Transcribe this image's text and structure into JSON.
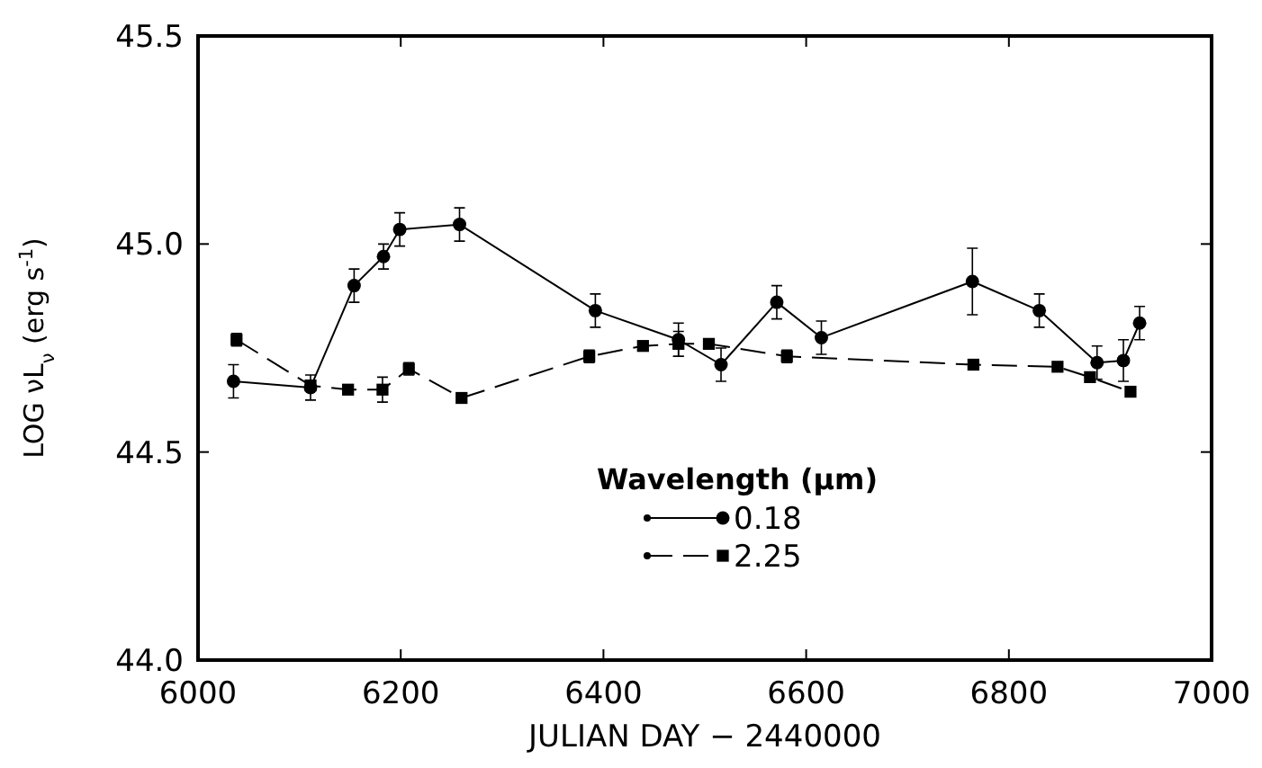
{
  "chart_data": {
    "type": "line",
    "xlabel": "JULIAN DAY − 2440000",
    "ylabel": "LOG νL$_{ν}$ (erg s$^{-1}$)",
    "xlim": [
      6000,
      7000
    ],
    "xticks": [
      6000,
      6200,
      6400,
      6600,
      6800,
      7000
    ],
    "ylim": [
      44.0,
      45.5
    ],
    "yticks": [
      {
        "value": 44,
        "label": "44.0"
      },
      44.5,
      {
        "value": 45,
        "label": "45.0"
      },
      45.5
    ],
    "legend": "bottom",
    "legend_title": "Wavelength (μm)",
    "series": [
      {
        "name": "0.18",
        "color": "#000000",
        "marker": "circle",
        "line_style": "solid",
        "x": [
          6035,
          6111,
          6154,
          6183,
          6199,
          6258,
          6392,
          6474,
          6516,
          6571,
          6615,
          6764,
          6830,
          6887,
          6913,
          6929
        ],
        "values": [
          44.67,
          44.655,
          44.9,
          44.97,
          45.035,
          45.047,
          44.84,
          44.77,
          44.71,
          44.86,
          44.775,
          44.91,
          44.84,
          44.715,
          44.72,
          44.81
        ],
        "errors": [
          0.04,
          0.03,
          0.04,
          0.03,
          0.04,
          0.04,
          0.04,
          0.04,
          0.04,
          0.04,
          0.04,
          0.08,
          0.04,
          0.04,
          0.05,
          0.04
        ]
      },
      {
        "name": "2.25",
        "color": "#000000",
        "marker": "square",
        "line_style": "dashed",
        "x": [
          6038,
          6111,
          6148,
          6182,
          6208,
          6260,
          6386,
          6439,
          6474,
          6504,
          6581,
          6765,
          6848,
          6880,
          6920
        ],
        "values": [
          44.77,
          44.66,
          44.65,
          44.65,
          44.7,
          44.63,
          44.73,
          44.755,
          44.76,
          44.76,
          44.73,
          44.71,
          44.705,
          44.68,
          44.645
        ],
        "errors": [
          0.015,
          null,
          null,
          0.03,
          0.015,
          null,
          0.015,
          null,
          0.03,
          null,
          0.015,
          null,
          null,
          null,
          null
        ]
      }
    ]
  }
}
